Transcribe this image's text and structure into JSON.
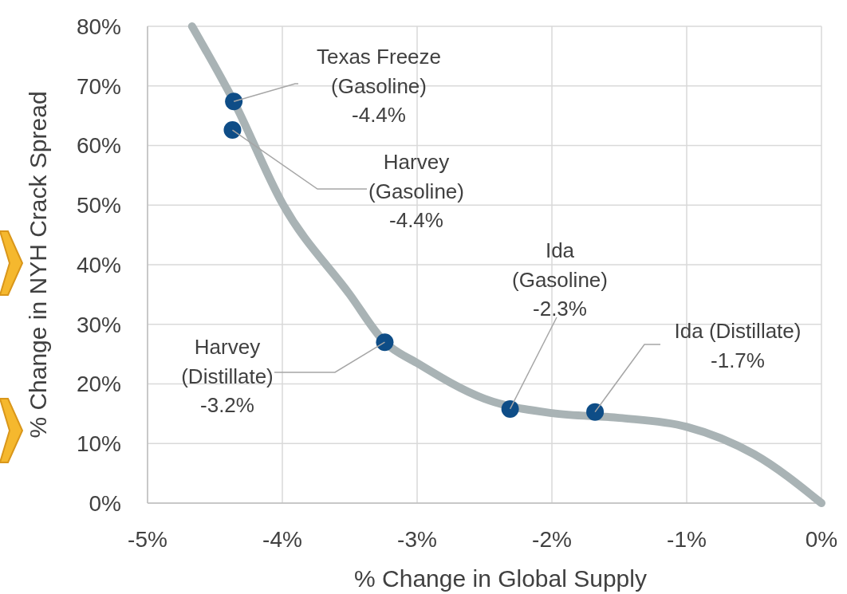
{
  "chart_data": {
    "type": "scatter",
    "xlabel": "% Change in Global Supply",
    "ylabel": "% Change in NYH Crack Spread",
    "xlim": [
      -5,
      0
    ],
    "ylim": [
      0,
      80
    ],
    "xticks": [
      {
        "value": -5,
        "label": "-5%"
      },
      {
        "value": -4,
        "label": "-4%"
      },
      {
        "value": -3,
        "label": "-3%"
      },
      {
        "value": -2,
        "label": "-2%"
      },
      {
        "value": -1,
        "label": "-1%"
      },
      {
        "value": 0,
        "label": "0%"
      }
    ],
    "yticks": [
      {
        "value": 0,
        "label": "0%"
      },
      {
        "value": 10,
        "label": "10%"
      },
      {
        "value": 20,
        "label": "20%"
      },
      {
        "value": 30,
        "label": "30%"
      },
      {
        "value": 40,
        "label": "40%"
      },
      {
        "value": 50,
        "label": "50%"
      },
      {
        "value": 60,
        "label": "60%"
      },
      {
        "value": 70,
        "label": "70%"
      },
      {
        "value": 80,
        "label": "80%"
      }
    ],
    "grid": true,
    "series": [
      {
        "type": "line",
        "color": "#a9b3b5",
        "x": [
          -4.67,
          -4.36,
          -4.0,
          -3.5,
          -3.24,
          -3.0,
          -2.5,
          -2.0,
          -1.5,
          -1.0,
          -0.5,
          0
        ],
        "values": [
          80,
          67.4,
          50.3,
          35,
          27,
          23.5,
          17.5,
          15.1,
          14.3,
          12.8,
          8.2,
          0
        ]
      },
      {
        "marker": "circle",
        "color": "#0e4d87",
        "x": [
          -4.36,
          -4.37,
          -3.24,
          -2.31,
          -1.68
        ],
        "values": [
          67.4,
          62.6,
          27,
          15.8,
          15.3
        ]
      }
    ],
    "annotations": [
      {
        "text": "Texas Freeze\n(Gasoline)\n-4.4%",
        "x": -4.36,
        "y": 67.4
      },
      {
        "text": "Harvey\n(Gasoline)\n-4.4%",
        "x": -4.37,
        "y": 62.6
      },
      {
        "text": "Harvey\n(Distillate)\n-3.2%",
        "x": -3.24,
        "y": 27
      },
      {
        "text": "Ida\n(Gasoline)\n-2.3%",
        "x": -2.31,
        "y": 15.8
      },
      {
        "text": "Ida (Distillate)\n-1.7%",
        "x": -1.68,
        "y": 15.3
      }
    ]
  }
}
